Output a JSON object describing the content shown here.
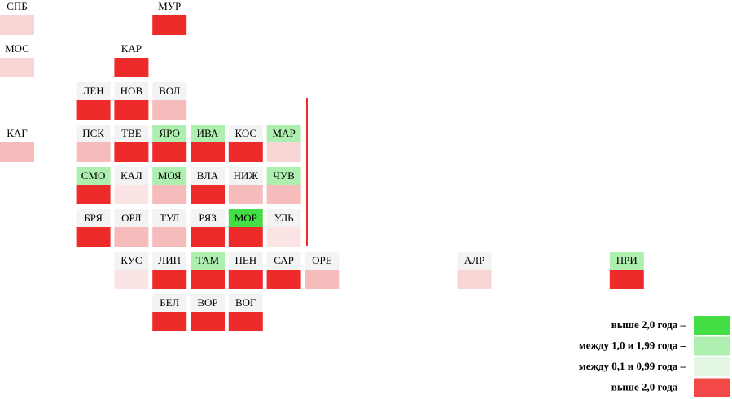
{
  "tiles": [
    {
      "label": "СПБ",
      "label_color": "#ffffff",
      "color": "#f9d6d6"
    },
    {
      "label": "МУР",
      "label_color": "#ffffff",
      "color": "#ee2b2b"
    },
    {
      "label": "МОС",
      "label_color": "#ffffff",
      "color": "#f9d6d6"
    },
    {
      "label": "КАР",
      "label_color": "#ffffff",
      "color": "#ee2b2b"
    },
    {
      "label": "ЛЕН",
      "label_color": "#f3f3f3",
      "color": "#ee2b2b"
    },
    {
      "label": "НОВ",
      "label_color": "#f3f3f3",
      "color": "#ee2b2b"
    },
    {
      "label": "ВОЛ",
      "label_color": "#f3f3f3",
      "color": "#f6bcbc"
    },
    {
      "label": "КАГ",
      "label_color": "#ffffff",
      "color": "#f6bcbc"
    },
    {
      "label": "ПСК",
      "label_color": "#f3f3f3",
      "color": "#f6bcbc"
    },
    {
      "label": "ТВЕ",
      "label_color": "#f3f3f3",
      "color": "#ee2b2b"
    },
    {
      "label": "ЯРО",
      "label_color": "#aeeeae",
      "color": "#ee2b2b"
    },
    {
      "label": "ИВА",
      "label_color": "#aeeeae",
      "color": "#ee2b2b"
    },
    {
      "label": "КОС",
      "label_color": "#f3f3f3",
      "color": "#ee2b2b"
    },
    {
      "label": "МАР",
      "label_color": "#aeeeae",
      "color": "#f9d6d6"
    },
    {
      "label": "СМО",
      "label_color": "#aeeeae",
      "color": "#ee2b2b"
    },
    {
      "label": "КАЛ",
      "label_color": "#f3f3f3",
      "color": "#fbe4e4"
    },
    {
      "label": "МОЯ",
      "label_color": "#aeeeae",
      "color": "#f6bcbc"
    },
    {
      "label": "ВЛА",
      "label_color": "#f3f3f3",
      "color": "#ee2b2b"
    },
    {
      "label": "НИЖ",
      "label_color": "#f3f3f3",
      "color": "#f6bcbc"
    },
    {
      "label": "ЧУВ",
      "label_color": "#aeeeae",
      "color": "#f6bcbc"
    },
    {
      "label": "БРЯ",
      "label_color": "#f3f3f3",
      "color": "#ee2b2b"
    },
    {
      "label": "ОРЛ",
      "label_color": "#f3f3f3",
      "color": "#f6bcbc"
    },
    {
      "label": "ТУЛ",
      "label_color": "#f3f3f3",
      "color": "#f6bcbc"
    },
    {
      "label": "РЯЗ",
      "label_color": "#f3f3f3",
      "color": "#ee2b2b"
    },
    {
      "label": "МОР",
      "label_color": "#44dd44",
      "color": "#ee2b2b"
    },
    {
      "label": "УЛЬ",
      "label_color": "#f3f3f3",
      "color": "#fbe4e4"
    },
    {
      "label": "КУС",
      "label_color": "#f3f3f3",
      "color": "#fbe4e4"
    },
    {
      "label": "ЛИП",
      "label_color": "#f3f3f3",
      "color": "#ee2b2b"
    },
    {
      "label": "ТАМ",
      "label_color": "#aeeeae",
      "color": "#ee2b2b"
    },
    {
      "label": "ПЕН",
      "label_color": "#f3f3f3",
      "color": "#ee2b2b"
    },
    {
      "label": "САР",
      "label_color": "#f3f3f3",
      "color": "#ee2b2b"
    },
    {
      "label": "ОРЕ",
      "label_color": "#f3f3f3",
      "color": "#f6bcbc"
    },
    {
      "label": "АЛР",
      "label_color": "#f3f3f3",
      "color": "#f9d6d6"
    },
    {
      "label": "ПРИ",
      "label_color": "#aeeeae",
      "color": "#ee2b2b"
    },
    {
      "label": "БЕЛ",
      "label_color": "#f3f3f3",
      "color": "#ee2b2b"
    },
    {
      "label": "ВОР",
      "label_color": "#f3f3f3",
      "color": "#ee2b2b"
    },
    {
      "label": "ВОГ",
      "label_color": "#f3f3f3",
      "color": "#ee2b2b"
    }
  ],
  "legend": {
    "items": [
      {
        "label": "выше 2,0 года –",
        "color": "#44dd44"
      },
      {
        "label": "между 1,0 и 1,99 года –",
        "color": "#aeeeae"
      },
      {
        "label": "между 0,1 и 0,99 года –",
        "color": "#e4f6e4"
      },
      {
        "label": "выше 2,0 года –",
        "color": "#f24848"
      }
    ]
  }
}
